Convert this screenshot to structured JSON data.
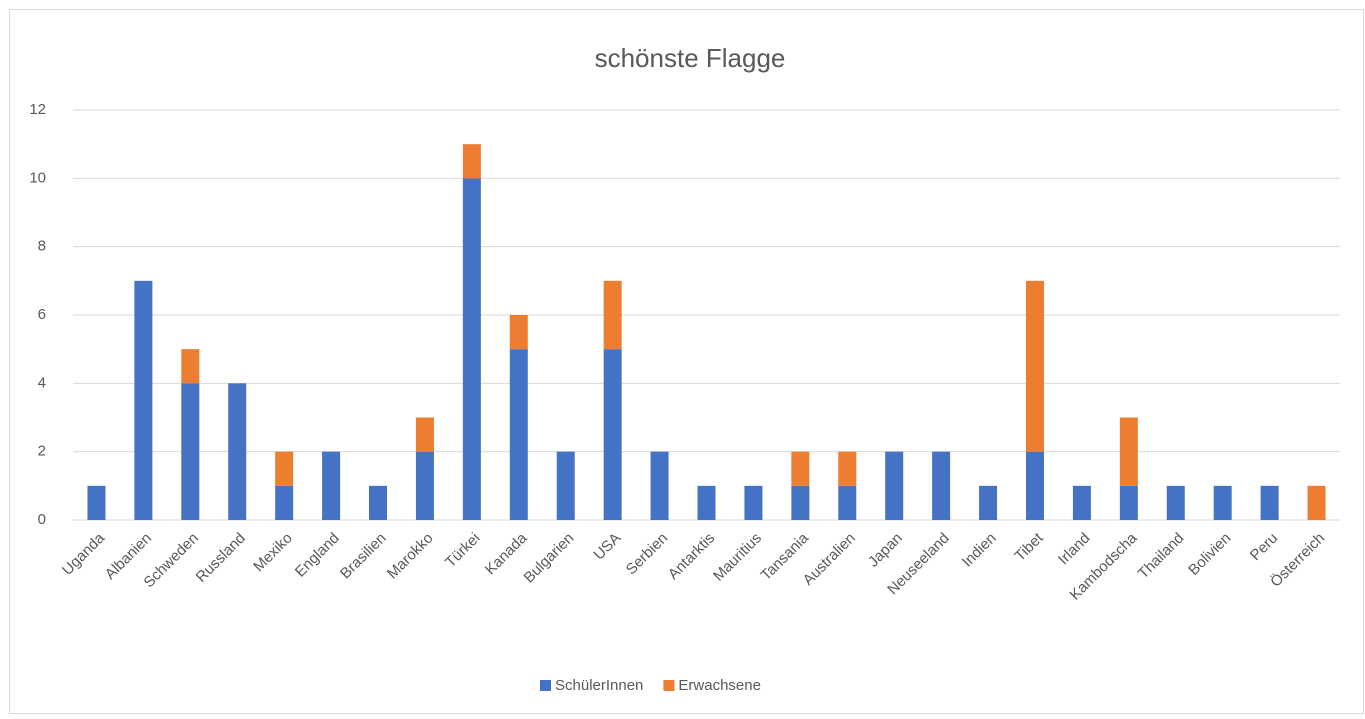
{
  "chart_data": {
    "type": "stacked_bar",
    "title": "schönste Flagge",
    "categories": [
      "Uganda",
      "Albanien",
      "Schweden",
      "Russland",
      "Mexiko",
      "England",
      "Brasilien",
      "Marokko",
      "Türkei",
      "Kanada",
      "Bulgarien",
      "USA",
      "Serbien",
      "Antarktis",
      "Mauritius",
      "Tansania",
      "Australien",
      "Japan",
      "Neuseeland",
      "Indien",
      "Tibet",
      "Irland",
      "Kambodscha",
      "Thailand",
      "Bolivien",
      "Peru",
      "Österreich"
    ],
    "series": [
      {
        "name": "SchülerInnen",
        "color": "#4472c4",
        "values": [
          1,
          7,
          4,
          4,
          1,
          2,
          1,
          2,
          10,
          5,
          2,
          5,
          2,
          1,
          1,
          1,
          1,
          2,
          2,
          1,
          2,
          1,
          1,
          1,
          1,
          1,
          0
        ]
      },
      {
        "name": "Erwachsene",
        "color": "#ed7d31",
        "values": [
          0,
          0,
          1,
          0,
          1,
          0,
          0,
          1,
          1,
          1,
          0,
          2,
          0,
          0,
          0,
          1,
          1,
          0,
          0,
          0,
          5,
          0,
          2,
          0,
          0,
          0,
          1
        ]
      }
    ],
    "ylim": [
      0,
      12
    ],
    "yticks": [
      0,
      2,
      4,
      6,
      8,
      10,
      12
    ],
    "grid": true,
    "legend": "bottom"
  }
}
